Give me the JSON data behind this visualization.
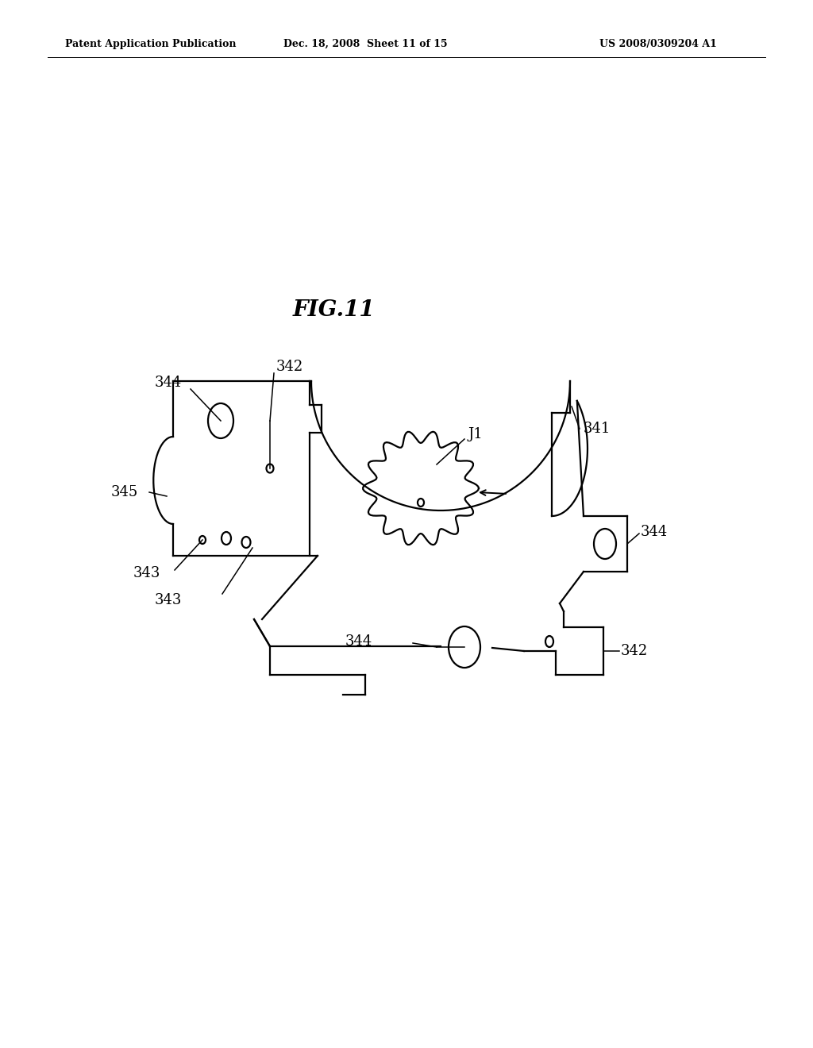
{
  "background_color": "#ffffff",
  "fig_title": "FIG.11",
  "header_left": "Patent Application Publication",
  "header_mid": "Dec. 18, 2008  Sheet 11 of 15",
  "header_right": "US 2008/0309204 A1"
}
